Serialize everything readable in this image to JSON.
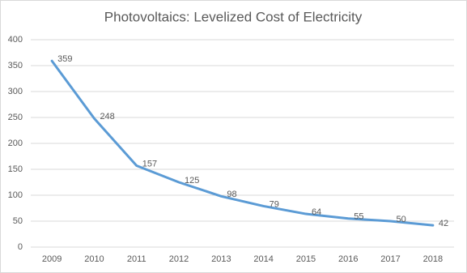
{
  "chart_data": {
    "type": "line",
    "title": "Photovoltaics: Levelized Cost of Electricity",
    "categories": [
      "2009",
      "2010",
      "2011",
      "2012",
      "2013",
      "2014",
      "2015",
      "2016",
      "2017",
      "2018"
    ],
    "values": [
      359,
      248,
      157,
      125,
      98,
      79,
      64,
      55,
      50,
      42
    ],
    "color": "#5b9bd5",
    "ylim": [
      0,
      400
    ],
    "yticks": [
      0,
      50,
      100,
      150,
      200,
      250,
      300,
      350,
      400
    ],
    "grid": true,
    "data_labels": true
  }
}
